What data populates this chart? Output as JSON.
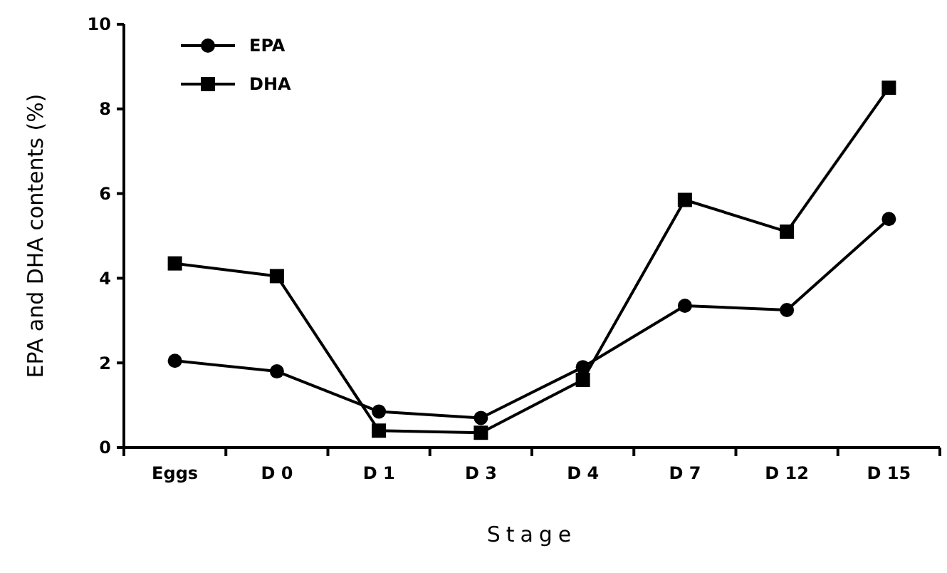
{
  "chart_data": {
    "type": "line",
    "xlabel": "Stage",
    "ylabel": "EPA and DHA contents (%)",
    "categories": [
      "Eggs",
      "D 0",
      "D 1",
      "D 3",
      "D 4",
      "D 7",
      "D 12",
      "D 15"
    ],
    "ylim": [
      0,
      10
    ],
    "yticks": [
      0,
      2,
      4,
      6,
      8,
      10
    ],
    "grid": false,
    "legend": "top left",
    "line_style": "solid",
    "series": [
      {
        "name": "EPA",
        "color": "#000000",
        "marker": "circle",
        "values": [
          2.05,
          1.8,
          0.85,
          0.7,
          1.9,
          3.35,
          3.25,
          5.4
        ]
      },
      {
        "name": "DHA",
        "color": "#000000",
        "marker": "square",
        "values": [
          4.35,
          4.05,
          0.4,
          0.35,
          1.6,
          5.85,
          5.1,
          8.5
        ]
      }
    ]
  }
}
